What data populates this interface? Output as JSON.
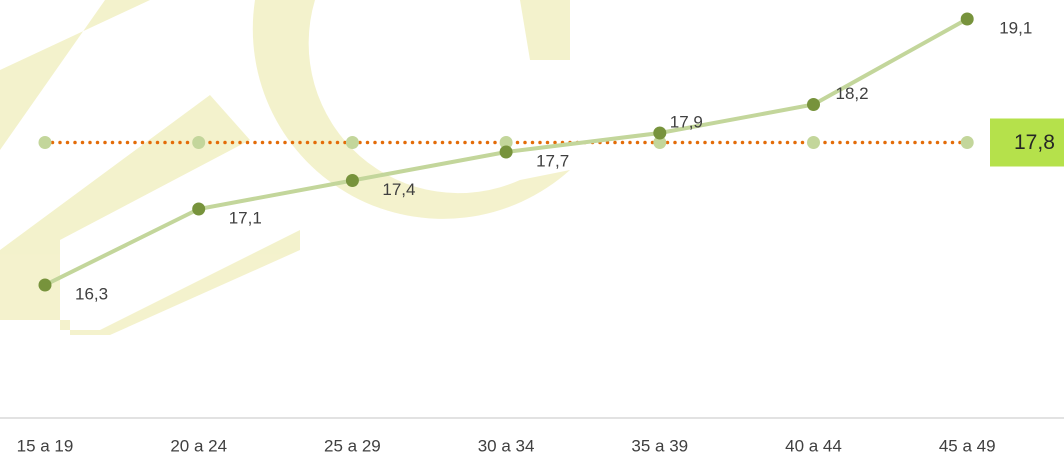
{
  "chart_data": {
    "type": "line",
    "categories": [
      "15 a 19",
      "20 a 24",
      "25 a 29",
      "30 a 34",
      "35 a 39",
      "40 a 44",
      "45 a 49"
    ],
    "series": [
      {
        "color": "#c3d69b",
        "marker_color": "#77933c",
        "values": [
          16.3,
          17.1,
          17.4,
          17.7,
          17.9,
          18.2,
          19.1
        ],
        "value_labels": [
          "16,3",
          "17,1",
          "17,4",
          "17,7",
          "17,9",
          "18,2",
          "19,1"
        ]
      },
      {
        "color": "#e36c09",
        "marker_color": "#c3d69b",
        "dash": "dotted",
        "label_box_color": "#b5e14b",
        "values": [
          17.8,
          17.8,
          17.8,
          17.8,
          17.8,
          17.8,
          17.8
        ],
        "value_labels": [
          null,
          null,
          null,
          null,
          null,
          null,
          "17,8"
        ]
      }
    ],
    "ylim": [
      14.9,
      19.3
    ]
  }
}
